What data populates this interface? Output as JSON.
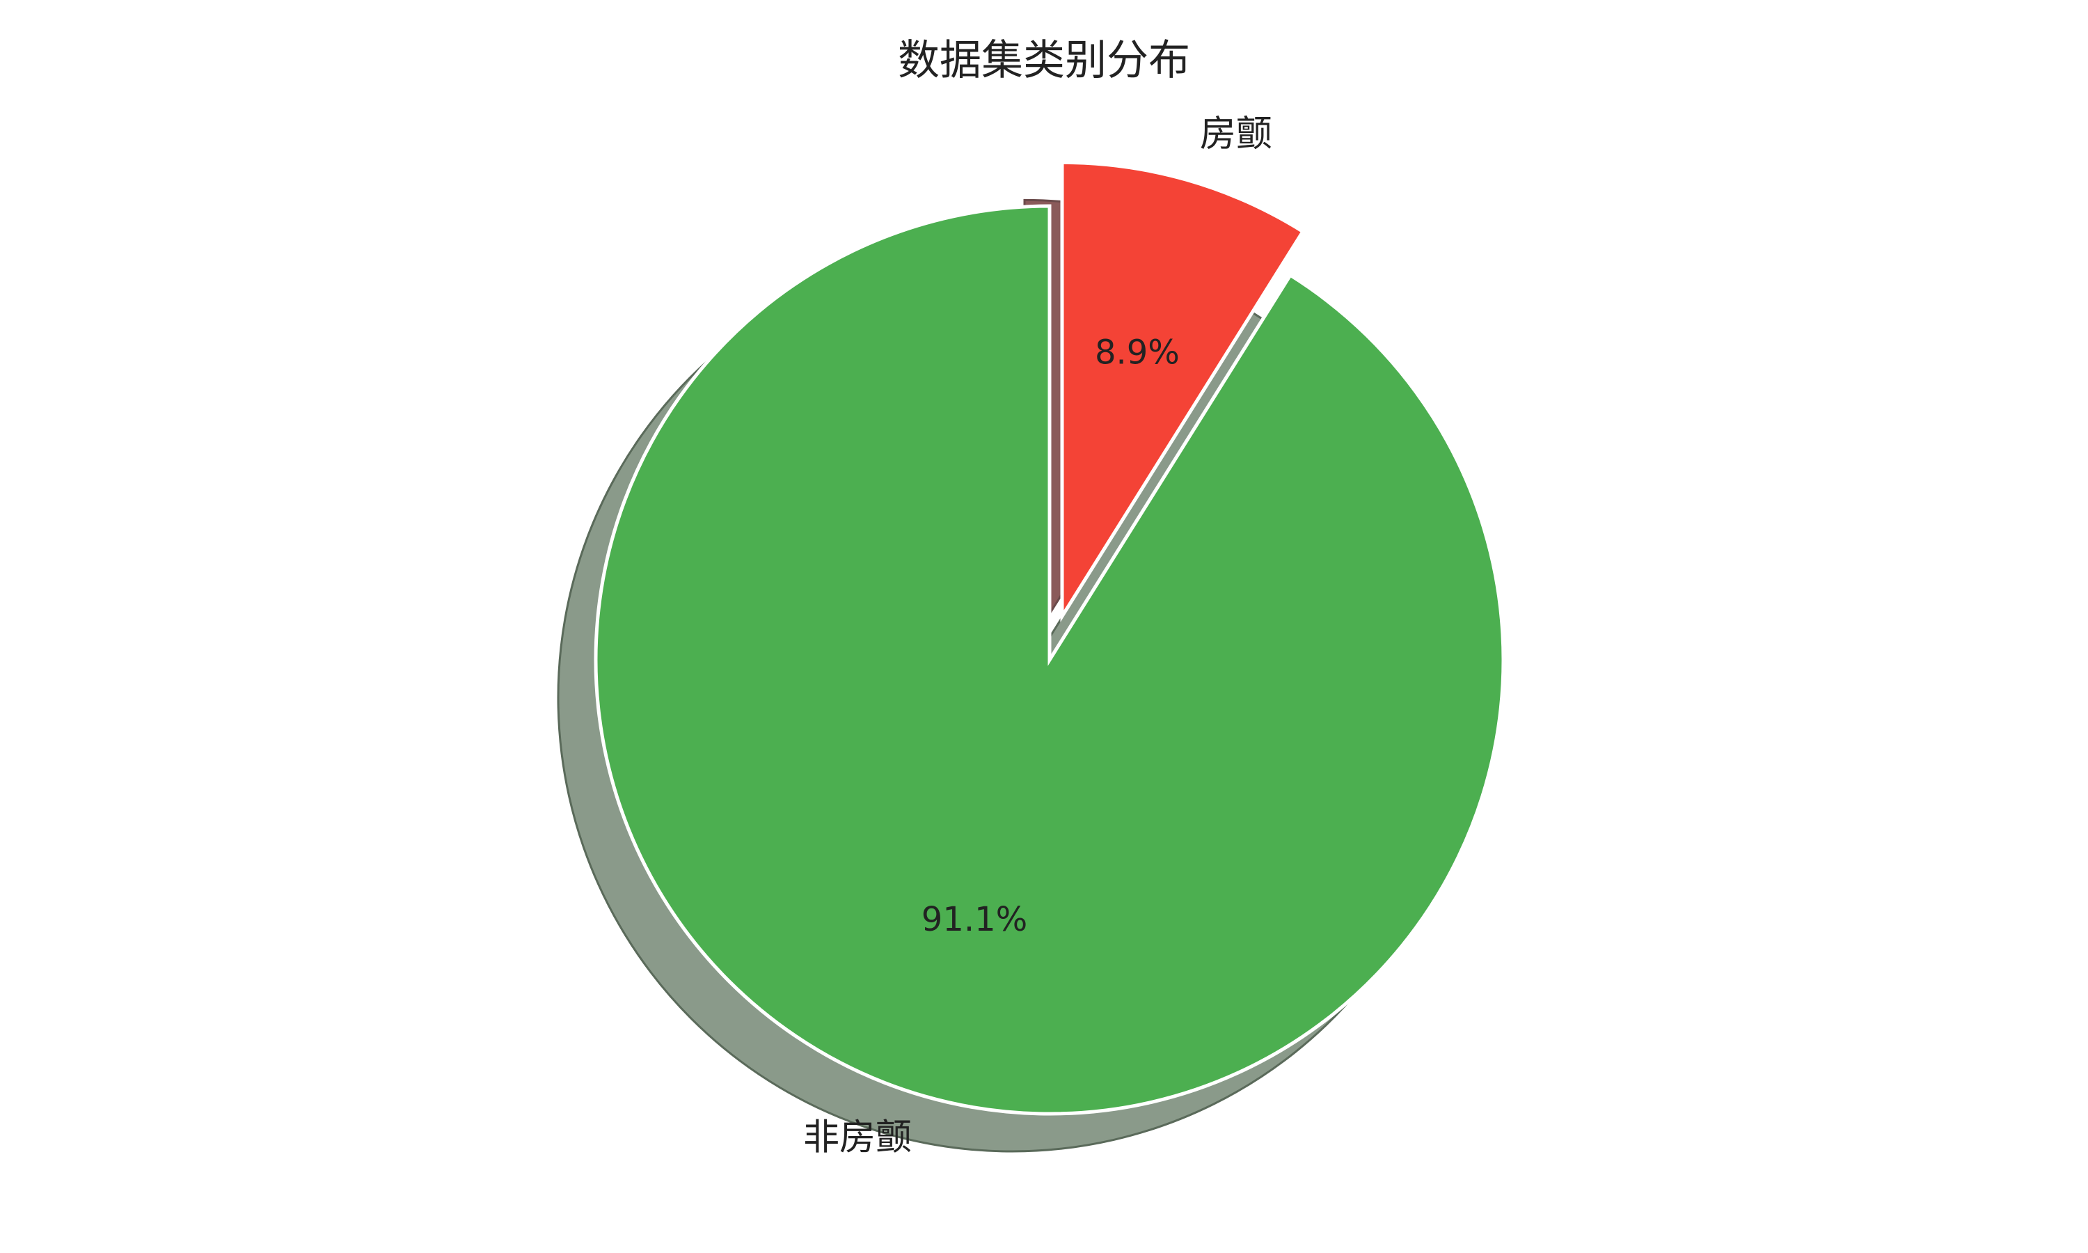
{
  "chart_data": {
    "type": "pie",
    "title": "数据集类别分布",
    "slices": [
      {
        "label": "房颤",
        "value": 8.9,
        "pct_label": "8.9%",
        "color": "#f44336",
        "exploded": true
      },
      {
        "label": "非房颤",
        "value": 91.1,
        "pct_label": "91.1%",
        "color": "#4caf50",
        "exploded": false
      }
    ],
    "start_angle_deg": 90,
    "direction": "clockwise",
    "shadow": true,
    "edge_color": "#ffffff",
    "legend": "none"
  }
}
